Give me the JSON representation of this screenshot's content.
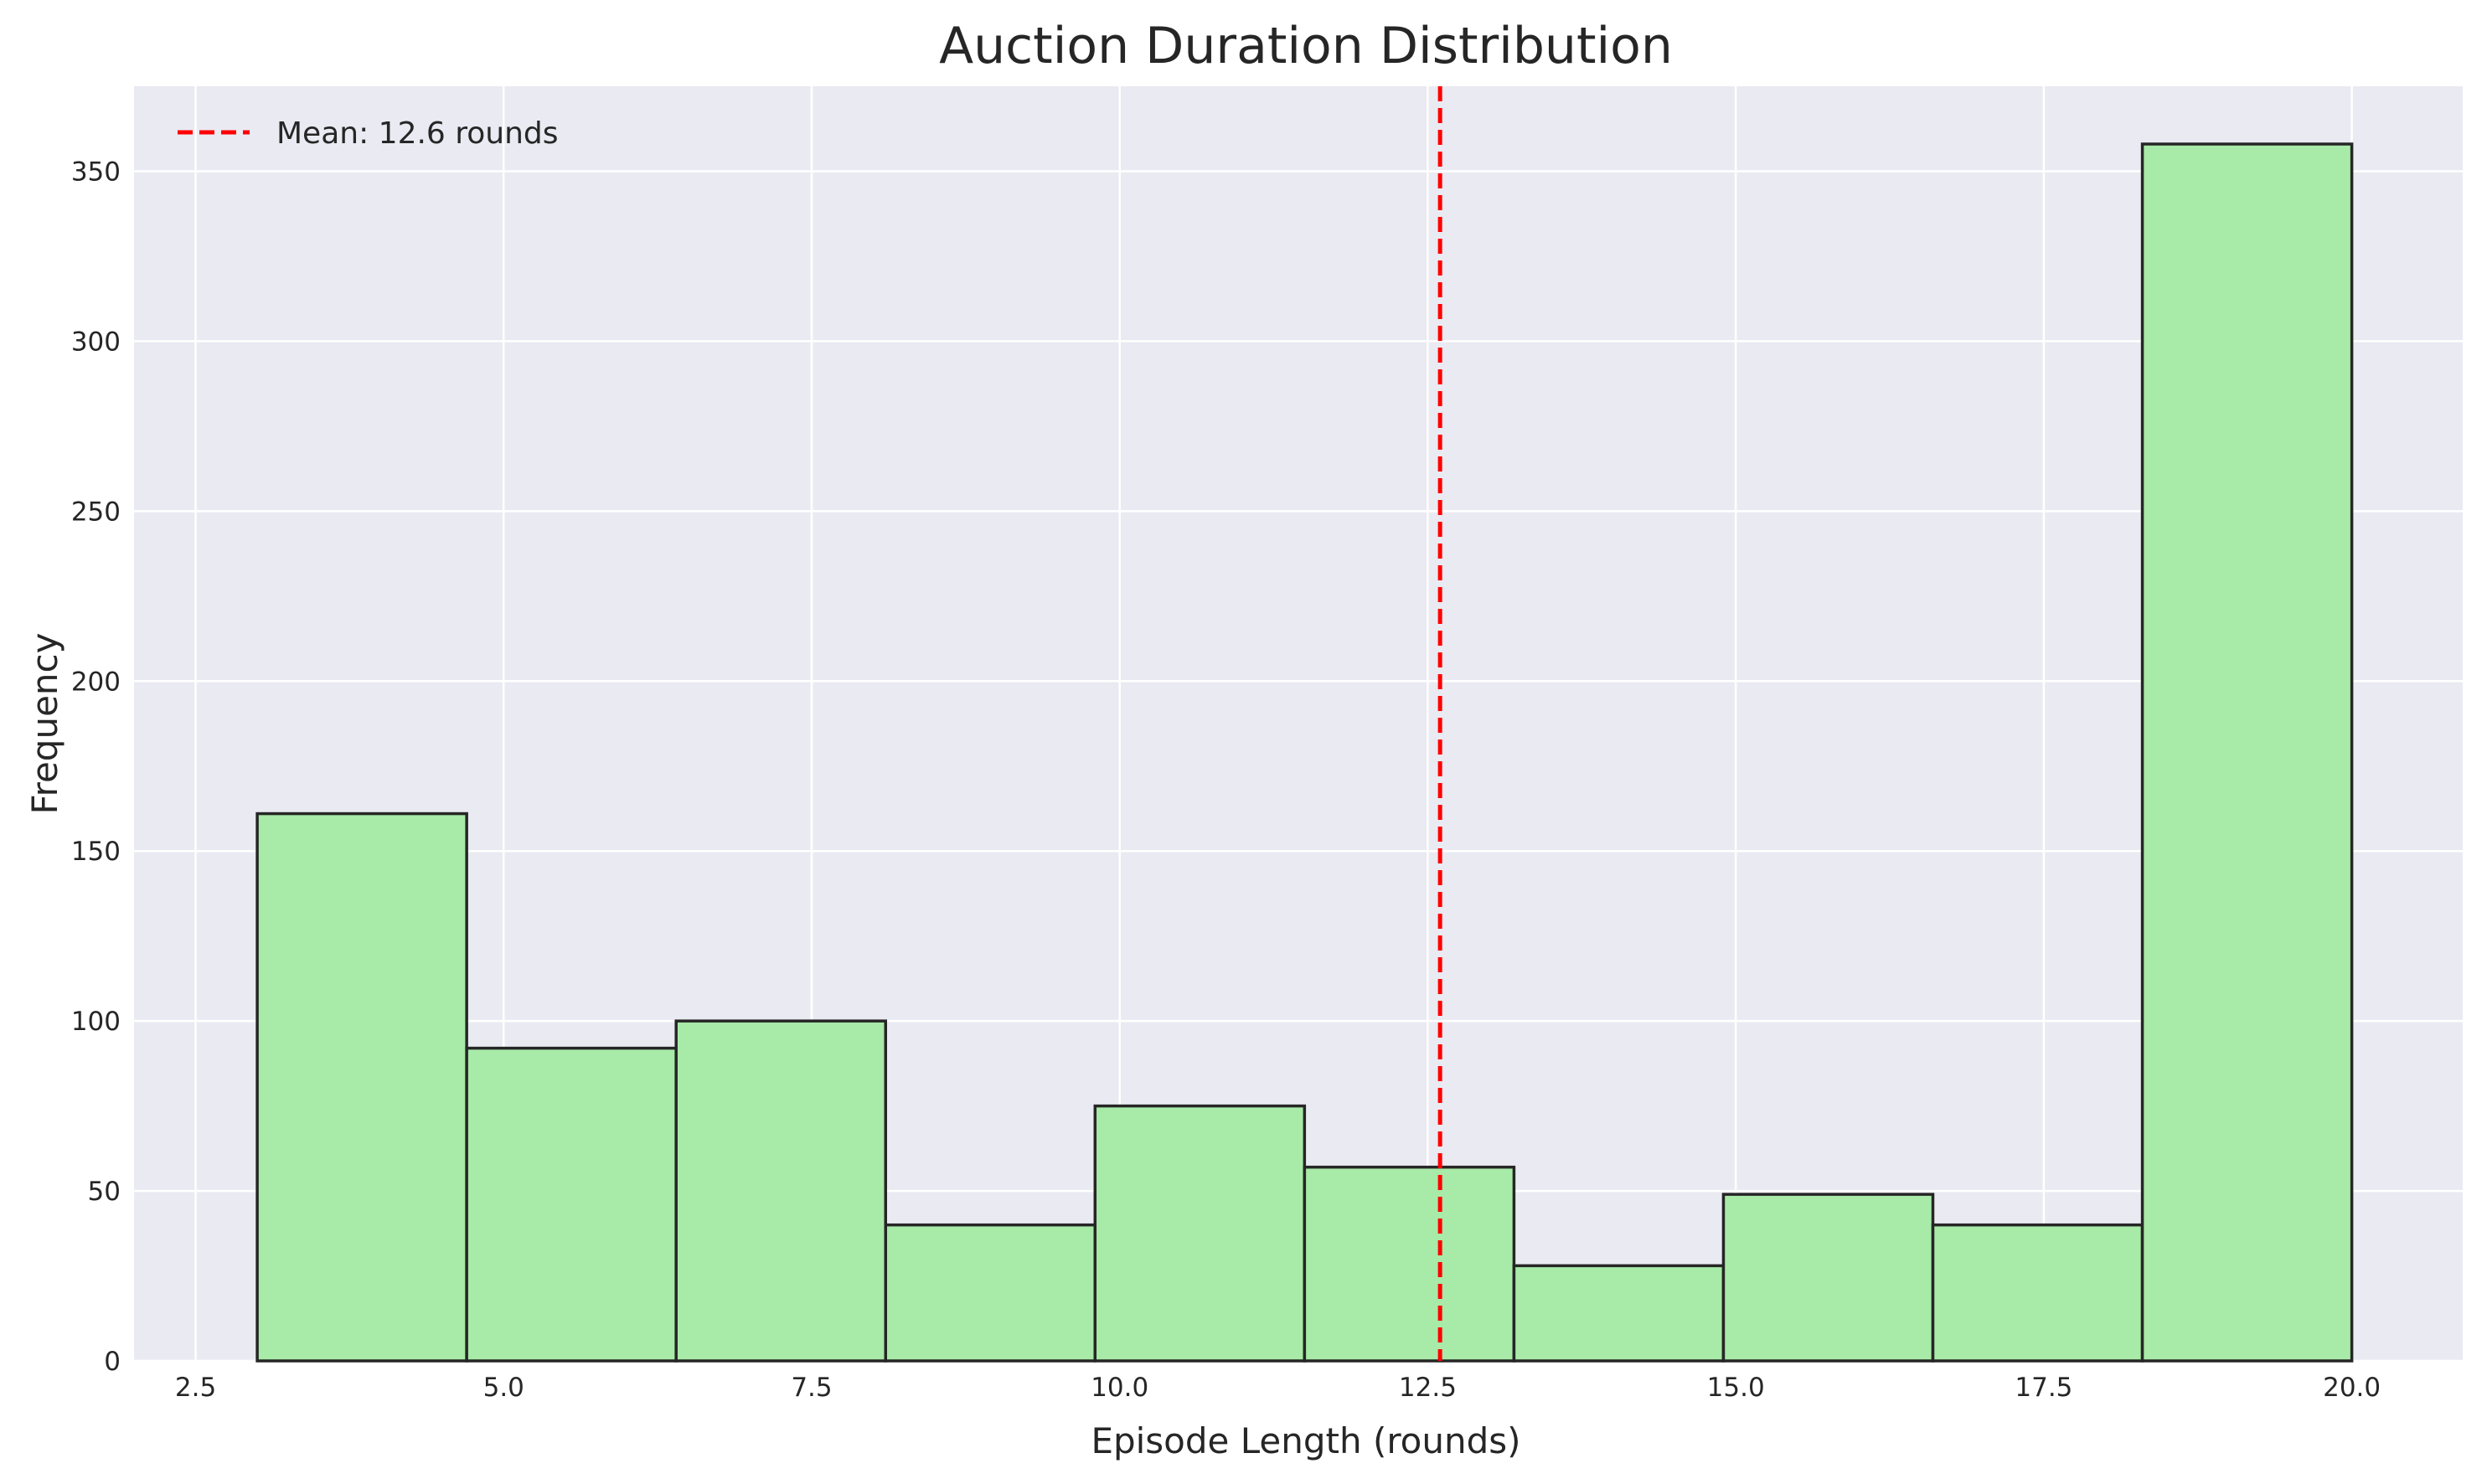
{
  "chart_data": {
    "type": "bar",
    "title": "Auction Duration Distribution",
    "xlabel": "Episode Length (rounds)",
    "ylabel": "Frequency",
    "xlim": [
      2,
      20.9
    ],
    "ylim": [
      0,
      375
    ],
    "grid": true,
    "legend_position": "top-left",
    "x_ticks": [
      "2.5",
      "5.0",
      "7.5",
      "10.0",
      "12.5",
      "15.0",
      "17.5",
      "20.0"
    ],
    "y_ticks": [
      "0",
      "50",
      "100",
      "150",
      "200",
      "250",
      "300",
      "350"
    ],
    "bins": [
      {
        "start": 3.0,
        "end": 4.7,
        "value": 161
      },
      {
        "start": 4.7,
        "end": 6.4,
        "value": 92
      },
      {
        "start": 6.4,
        "end": 8.1,
        "value": 100
      },
      {
        "start": 8.1,
        "end": 9.8,
        "value": 40
      },
      {
        "start": 9.8,
        "end": 11.5,
        "value": 75
      },
      {
        "start": 11.5,
        "end": 13.2,
        "value": 57
      },
      {
        "start": 13.2,
        "end": 14.9,
        "value": 28
      },
      {
        "start": 14.9,
        "end": 16.6,
        "value": 49
      },
      {
        "start": 16.6,
        "end": 18.3,
        "value": 40
      },
      {
        "start": 18.3,
        "end": 20.0,
        "value": 358
      }
    ],
    "mean_line": {
      "x": 12.6,
      "label": "Mean: 12.6 rounds",
      "color": "#ff0000"
    },
    "colors": {
      "bar_fill": "#a8eaa8",
      "bar_edge": "#262626",
      "plot_bg": "#eaeaf2",
      "grid": "#ffffff"
    }
  }
}
